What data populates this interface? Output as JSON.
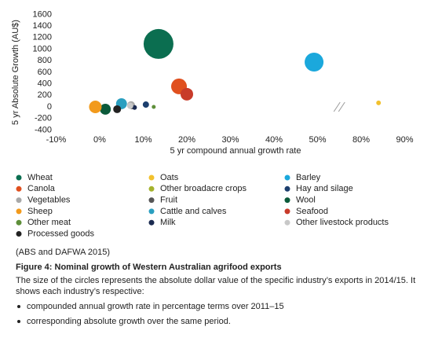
{
  "chart_data": {
    "type": "scatter",
    "x_label": "5 yr compound annual growth rate",
    "y_label": "5 yr Absolute Growth (AU$)",
    "xlim": [
      -15,
      95
    ],
    "x_break": [
      55,
      75
    ],
    "xticks": [
      {
        "value": -10,
        "label": "-10%"
      },
      {
        "value": 0,
        "label": "0%"
      },
      {
        "value": 10,
        "label": "10%"
      },
      {
        "value": 20,
        "label": "20%"
      },
      {
        "value": 30,
        "label": "30%"
      },
      {
        "value": 40,
        "label": "40%"
      },
      {
        "value": 50,
        "label": "50%"
      },
      {
        "value": 80,
        "label": "80%"
      },
      {
        "value": 90,
        "label": "90%"
      }
    ],
    "ylim": [
      -400,
      1600
    ],
    "yticks": [
      -400,
      -200,
      0,
      200,
      400,
      600,
      800,
      1000,
      1200,
      1400,
      1600
    ],
    "series": [
      {
        "name": "Wheat",
        "color": "#0b6e50",
        "x": [
          13.5
        ],
        "values": [
          1090
        ],
        "sizes": [
          4500
        ]
      },
      {
        "name": "Oats",
        "color": "#f2c12e",
        "x": [
          84
        ],
        "values": [
          70
        ],
        "sizes": [
          110
        ]
      },
      {
        "name": "Barley",
        "color": "#1ba8dc",
        "x": [
          49.2
        ],
        "values": [
          775
        ],
        "sizes": [
          1800
        ]
      },
      {
        "name": "Canola",
        "color": "#e0501f",
        "x": [
          18.2
        ],
        "values": [
          355
        ],
        "sizes": [
          1250
        ]
      },
      {
        "name": "Other broadacre crops",
        "color": "#a4b22c",
        "x": [
          7.6
        ],
        "values": [
          5
        ],
        "sizes": [
          80
        ]
      },
      {
        "name": "Hay and silage",
        "color": "#1c3f6e",
        "x": [
          10.6
        ],
        "values": [
          40
        ],
        "sizes": [
          200
        ]
      },
      {
        "name": "Vegetables",
        "color": "#a8a8a8",
        "x": [
          7.2
        ],
        "values": [
          30
        ],
        "sizes": [
          310
        ]
      },
      {
        "name": "Fruit",
        "color": "#555555",
        "x": [
          7.4
        ],
        "values": [
          0
        ],
        "sizes": [
          110
        ]
      },
      {
        "name": "Wool",
        "color": "#0b5a3a",
        "x": [
          1.3
        ],
        "values": [
          -40
        ],
        "sizes": [
          600
        ]
      },
      {
        "name": "Sheep",
        "color": "#f29a1c",
        "x": [
          -1
        ],
        "values": [
          0
        ],
        "sizes": [
          800
        ]
      },
      {
        "name": "Cattle and calves",
        "color": "#2a9fc0",
        "x": [
          5
        ],
        "values": [
          55
        ],
        "sizes": [
          600
        ]
      },
      {
        "name": "Seafood",
        "color": "#c83b2a",
        "x": [
          20
        ],
        "values": [
          220
        ],
        "sizes": [
          800
        ]
      },
      {
        "name": "Other meat",
        "color": "#5e8f3a",
        "x": [
          12.4
        ],
        "values": [
          0
        ],
        "sizes": [
          80
        ]
      },
      {
        "name": "Milk",
        "color": "#1a2a50",
        "x": [
          8
        ],
        "values": [
          -10
        ],
        "sizes": [
          110
        ]
      },
      {
        "name": "Other livestock products",
        "color": "#c8c8c8",
        "x": [
          7
        ],
        "values": [
          20
        ],
        "sizes": [
          200
        ]
      },
      {
        "name": "Processed goods",
        "color": "#222222",
        "x": [
          4
        ],
        "values": [
          -40
        ],
        "sizes": [
          310
        ]
      }
    ]
  },
  "source": "(ABS and DAFWA 2015)",
  "caption": "Figure 4: Nominal growth of Western Australian agrifood exports",
  "paragraph": "The size of the circles represents the absolute dollar value of the specific industry’s exports in 2014/15. It shows each industry’s respective:",
  "bullets": [
    "compounded annual growth rate in percentage terms over 2011–15",
    "corresponding absolute growth over the same period."
  ]
}
